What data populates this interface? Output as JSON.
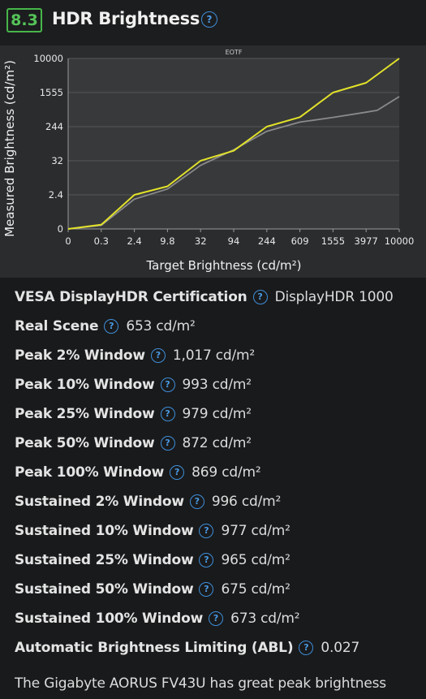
{
  "header": {
    "score": "8.3",
    "title": "HDR Brightness",
    "help_icon": "question-circle-icon"
  },
  "chart_data": {
    "type": "line",
    "title": "EOTF",
    "xlabel": "Target Brightness (cd/m²)",
    "ylabel": "Measured Brightness (cd/m²)",
    "x_tick_labels": [
      "0",
      "0.3",
      "2.4",
      "9.8",
      "32",
      "94",
      "244",
      "609",
      "1555",
      "3977",
      "10000"
    ],
    "y_tick_labels": [
      "0",
      "2.4",
      "32",
      "244",
      "1555",
      "10000"
    ],
    "y_tick_values": [
      0,
      2.4,
      32,
      244,
      1555,
      10000
    ],
    "x_tick_values": [
      0,
      0.3,
      2.4,
      9.8,
      32,
      94,
      244,
      609,
      1555,
      3977,
      10000
    ],
    "xlim": [
      0,
      10000
    ],
    "ylim": [
      0,
      10000
    ],
    "grid": true,
    "series": [
      {
        "color": "#e2e22a",
        "x": [
          0,
          0.3,
          2.4,
          9.8,
          32,
          94,
          244,
          609,
          1555,
          3977,
          10000
        ],
        "y": [
          0,
          0.3,
          2.4,
          9.8,
          32,
          94,
          244,
          609,
          1555,
          3977,
          10000
        ]
      },
      {
        "color": "#8a8a8a",
        "x": [
          0,
          0.3,
          2.4,
          9.8,
          32,
          94,
          244,
          609,
          1555,
          3977,
          6000,
          10000
        ],
        "y": [
          0,
          0.25,
          2.1,
          7.5,
          28,
          100,
          215,
          420,
          600,
          800,
          870,
          1400
        ]
      }
    ]
  },
  "specs": [
    {
      "label": "VESA DisplayHDR Certification",
      "value": "DisplayHDR 1000"
    },
    {
      "label": "Real Scene",
      "value": "653 cd/m²"
    },
    {
      "label": "Peak 2% Window",
      "value": "1,017 cd/m²"
    },
    {
      "label": "Peak 10% Window",
      "value": "993 cd/m²"
    },
    {
      "label": "Peak 25% Window",
      "value": "979 cd/m²"
    },
    {
      "label": "Peak 50% Window",
      "value": "872 cd/m²"
    },
    {
      "label": "Peak 100% Window",
      "value": "869 cd/m²"
    },
    {
      "label": "Sustained 2% Window",
      "value": "996 cd/m²"
    },
    {
      "label": "Sustained 10% Window",
      "value": "977 cd/m²"
    },
    {
      "label": "Sustained 25% Window",
      "value": "965 cd/m²"
    },
    {
      "label": "Sustained 50% Window",
      "value": "675 cd/m²"
    },
    {
      "label": "Sustained 100% Window",
      "value": "673 cd/m²"
    },
    {
      "label": "Automatic Brightness Limiting (ABL)",
      "value": "0.027"
    }
  ],
  "body": {
    "text": "The Gigabyte AORUS FV43U has great peak brightness"
  },
  "colors": {
    "accent_green": "#47b649",
    "help_blue": "#3e8ed8",
    "background": "#191a1c",
    "chart_bg": "#2b2c2e"
  }
}
